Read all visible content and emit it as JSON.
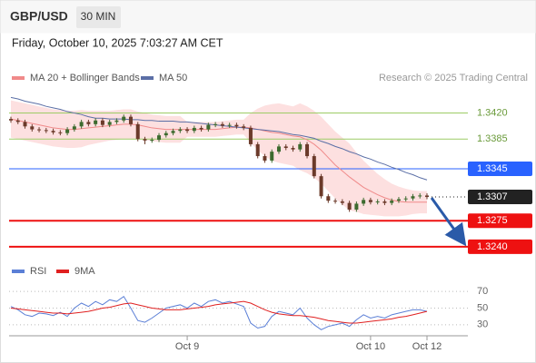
{
  "header": {
    "symbol": "GBP/USD",
    "interval": "30 MIN",
    "timestamp": "Friday, October 10, 2025 7:03:27 AM CET"
  },
  "chart_data": [
    {
      "type": "candlestick",
      "credit": "Research © 2025 Trading Central",
      "up_color": "#3d6b2f",
      "down_color": "#6b3a2a",
      "open": [
        1.3412,
        1.341,
        1.3408,
        1.3402,
        1.3398,
        1.3397,
        1.3396,
        1.3394,
        1.3393,
        1.3398,
        1.3402,
        1.3408,
        1.3405,
        1.341,
        1.3404,
        1.3408,
        1.341,
        1.3415,
        1.3405,
        1.3385,
        1.3383,
        1.3384,
        1.339,
        1.3393,
        1.3396,
        1.3398,
        1.3396,
        1.34,
        1.3398,
        1.3404,
        1.3405,
        1.3403,
        1.3404,
        1.3402,
        1.34,
        1.3378,
        1.3362,
        1.3356,
        1.3368,
        1.3375,
        1.3373,
        1.3371,
        1.3378,
        1.3362,
        1.3335,
        1.3308,
        1.3302,
        1.3301,
        1.3299,
        1.329,
        1.3298,
        1.3303,
        1.33,
        1.3301,
        1.3299,
        1.3302,
        1.3304,
        1.3305,
        1.3308,
        1.3309
      ],
      "high": [
        1.3415,
        1.3413,
        1.3411,
        1.3405,
        1.3401,
        1.34,
        1.3399,
        1.3397,
        1.3401,
        1.3405,
        1.3411,
        1.3411,
        1.3413,
        1.3413,
        1.3411,
        1.3413,
        1.3418,
        1.3418,
        1.3408,
        1.3388,
        1.3387,
        1.3393,
        1.3396,
        1.3399,
        1.3401,
        1.3401,
        1.3403,
        1.3403,
        1.3407,
        1.3408,
        1.3408,
        1.3407,
        1.3407,
        1.3405,
        1.3403,
        1.3381,
        1.3365,
        1.3371,
        1.3378,
        1.3378,
        1.3376,
        1.3381,
        1.3381,
        1.3365,
        1.3338,
        1.3311,
        1.3305,
        1.3304,
        1.3302,
        1.3301,
        1.3306,
        1.3306,
        1.3304,
        1.3304,
        1.3305,
        1.3307,
        1.3308,
        1.3311,
        1.3312,
        1.3312
      ],
      "low": [
        1.3407,
        1.3405,
        1.3399,
        1.3395,
        1.3394,
        1.3393,
        1.3391,
        1.339,
        1.339,
        1.3395,
        1.3399,
        1.3402,
        1.3402,
        1.3401,
        1.3401,
        1.3405,
        1.3407,
        1.3402,
        1.3382,
        1.3378,
        1.338,
        1.3381,
        1.3387,
        1.339,
        1.3393,
        1.3393,
        1.3393,
        1.3395,
        1.3395,
        1.3401,
        1.34,
        1.34,
        1.3399,
        1.3397,
        1.3375,
        1.3359,
        1.3353,
        1.3353,
        1.3365,
        1.337,
        1.3368,
        1.3368,
        1.3359,
        1.3332,
        1.3305,
        1.3299,
        1.3298,
        1.3296,
        1.3287,
        1.3287,
        1.3295,
        1.3297,
        1.3297,
        1.3296,
        1.3296,
        1.3299,
        1.3301,
        1.3302,
        1.3305,
        1.3304
      ],
      "close": [
        1.341,
        1.3408,
        1.3402,
        1.3398,
        1.3397,
        1.3396,
        1.3394,
        1.3393,
        1.3398,
        1.3402,
        1.3408,
        1.3405,
        1.341,
        1.3404,
        1.3408,
        1.341,
        1.3415,
        1.3405,
        1.3385,
        1.3383,
        1.3384,
        1.339,
        1.3393,
        1.3396,
        1.3398,
        1.3396,
        1.34,
        1.3398,
        1.3404,
        1.3405,
        1.3403,
        1.3404,
        1.3402,
        1.34,
        1.3378,
        1.3362,
        1.3356,
        1.3368,
        1.3375,
        1.3373,
        1.3371,
        1.3378,
        1.3362,
        1.3335,
        1.3308,
        1.3302,
        1.3301,
        1.3299,
        1.329,
        1.3298,
        1.3303,
        1.33,
        1.3301,
        1.3299,
        1.3302,
        1.3304,
        1.3305,
        1.3308,
        1.3309,
        1.3307
      ],
      "series": [
        {
          "name": "MA 20 + Bollinger Bands",
          "color": "#f08a8a",
          "band_color": "#fde0e0",
          "values": [
            1.3412,
            1.341,
            1.3408,
            1.3406,
            1.3404,
            1.3402,
            1.34,
            1.3399,
            1.3398,
            1.3398,
            1.3399,
            1.34,
            1.3401,
            1.3402,
            1.3403,
            1.3404,
            1.3405,
            1.3405,
            1.3404,
            1.3402,
            1.34,
            1.3399,
            1.3398,
            1.3398,
            1.3398,
            1.3398,
            1.3398,
            1.3398,
            1.3398,
            1.3398,
            1.3399,
            1.34,
            1.3401,
            1.3401,
            1.34,
            1.3398,
            1.3396,
            1.3394,
            1.3393,
            1.3391,
            1.3389,
            1.3388,
            1.3384,
            1.3378,
            1.337,
            1.336,
            1.335,
            1.3342,
            1.3334,
            1.3327,
            1.332,
            1.3315,
            1.331,
            1.3306,
            1.3303,
            1.3301,
            1.33,
            1.33,
            1.33,
            1.33
          ],
          "upper": [
            1.3437,
            1.3435,
            1.3433,
            1.3431,
            1.3429,
            1.3427,
            1.3425,
            1.3424,
            1.3423,
            1.3423,
            1.3424,
            1.3423,
            1.3423,
            1.3423,
            1.3423,
            1.3424,
            1.3425,
            1.3425,
            1.3422,
            1.342,
            1.3418,
            1.3417,
            1.3416,
            1.3416,
            1.3416,
            1.3408,
            1.3408,
            1.3408,
            1.3408,
            1.3408,
            1.3409,
            1.341,
            1.3411,
            1.3411,
            1.342,
            1.3426,
            1.343,
            1.3432,
            1.3433,
            1.3431,
            1.3429,
            1.3433,
            1.3429,
            1.3423,
            1.3415,
            1.3405,
            1.3395,
            1.3387,
            1.3379,
            1.3367,
            1.3356,
            1.3347,
            1.3338,
            1.3331,
            1.3325,
            1.3321,
            1.3318,
            1.3316,
            1.3315,
            1.3315
          ],
          "lower": [
            1.3387,
            1.3385,
            1.3383,
            1.3381,
            1.3379,
            1.3377,
            1.3375,
            1.3374,
            1.3373,
            1.3373,
            1.3374,
            1.3377,
            1.3379,
            1.3381,
            1.3383,
            1.3384,
            1.3385,
            1.3385,
            1.3386,
            1.3384,
            1.3382,
            1.3381,
            1.338,
            1.338,
            1.338,
            1.3388,
            1.3388,
            1.3388,
            1.3388,
            1.3388,
            1.3389,
            1.339,
            1.3391,
            1.3391,
            1.338,
            1.337,
            1.3362,
            1.3356,
            1.3353,
            1.3351,
            1.3349,
            1.3343,
            1.3339,
            1.3333,
            1.3325,
            1.3315,
            1.3305,
            1.3297,
            1.3289,
            1.3287,
            1.3284,
            1.3283,
            1.3282,
            1.3281,
            1.3281,
            1.3281,
            1.3282,
            1.3284,
            1.3285,
            1.3285
          ]
        },
        {
          "name": "MA 50",
          "color": "#5b6fa6",
          "values": [
            1.3441,
            1.3439,
            1.3436,
            1.3434,
            1.3432,
            1.3429,
            1.3427,
            1.3425,
            1.3422,
            1.342,
            1.3418,
            1.3415,
            1.3413,
            1.3413,
            1.3412,
            1.3412,
            1.3412,
            1.3411,
            1.3411,
            1.341,
            1.341,
            1.3409,
            1.3409,
            1.3409,
            1.3408,
            1.3408,
            1.3407,
            1.3406,
            1.3405,
            1.3404,
            1.3403,
            1.3402,
            1.3401,
            1.34,
            1.3399,
            1.3398,
            1.3397,
            1.3396,
            1.3395,
            1.3393,
            1.3391,
            1.339,
            1.3388,
            1.3386,
            1.3382,
            1.3379,
            1.3375,
            1.3372,
            1.3368,
            1.3365,
            1.3361,
            1.3358,
            1.3354,
            1.3351,
            1.3347,
            1.3344,
            1.334,
            1.3337,
            1.3333,
            1.333
          ]
        }
      ],
      "levels": [
        {
          "value": 1.342,
          "label": "1.3420",
          "color": "#9ccc65",
          "boxed": false,
          "line": "solid",
          "width": 1
        },
        {
          "value": 1.3385,
          "label": "1.3385",
          "color": "#9ccc65",
          "boxed": false,
          "line": "solid",
          "width": 1
        },
        {
          "value": 1.3345,
          "label": "1.3345",
          "color": "#2962ff",
          "boxed": true,
          "line": "solid",
          "width": 1
        },
        {
          "value": 1.3307,
          "label": "1.3307",
          "color": "#222222",
          "boxed": true,
          "line": "dotted",
          "width": 1
        },
        {
          "value": 1.3275,
          "label": "1.3275",
          "color": "#ee1111",
          "boxed": true,
          "line": "solid",
          "width": 2
        },
        {
          "value": 1.324,
          "label": "1.3240",
          "color": "#ee1111",
          "boxed": true,
          "line": "solid",
          "width": 2
        }
      ],
      "ylim": [
        1.3224,
        1.345
      ]
    },
    {
      "type": "line",
      "categories": [
        null,
        null,
        null,
        null,
        null,
        null,
        null,
        null,
        null,
        null,
        null,
        null,
        null,
        null,
        null,
        null,
        null,
        null,
        null,
        null,
        null,
        null,
        null,
        null,
        null,
        "Oct 9",
        null,
        null,
        null,
        null,
        null,
        null,
        null,
        null,
        null,
        null,
        null,
        null,
        null,
        null,
        null,
        null,
        null,
        null,
        null,
        null,
        null,
        null,
        null,
        null,
        null,
        "Oct 10",
        null,
        null,
        null,
        null,
        null,
        null,
        null,
        "Oct 12"
      ],
      "series": [
        {
          "name": "RSI",
          "color": "#5b7fd6",
          "values": [
            52,
            48,
            42,
            40,
            44,
            43,
            41,
            45,
            40,
            50,
            56,
            52,
            58,
            54,
            60,
            58,
            64,
            50,
            35,
            33,
            38,
            44,
            50,
            52,
            54,
            50,
            56,
            52,
            58,
            60,
            56,
            58,
            55,
            52,
            32,
            26,
            28,
            40,
            46,
            44,
            42,
            50,
            38,
            30,
            24,
            28,
            30,
            32,
            28,
            36,
            42,
            38,
            40,
            38,
            42,
            44,
            46,
            48,
            48,
            46
          ]
        },
        {
          "name": "9MA",
          "color": "#e02020",
          "values": [
            50,
            49,
            48,
            47,
            46,
            45,
            44,
            44,
            43,
            44,
            45,
            46,
            48,
            50,
            51,
            53,
            55,
            56,
            54,
            52,
            50,
            49,
            48,
            48,
            48,
            49,
            50,
            51,
            52,
            54,
            55,
            56,
            57,
            58,
            56,
            52,
            48,
            45,
            43,
            42,
            41,
            41,
            40,
            39,
            37,
            35,
            34,
            33,
            32,
            32,
            33,
            34,
            35,
            36,
            37,
            39,
            40,
            42,
            44,
            46
          ]
        }
      ],
      "ylim": [
        20,
        80
      ],
      "yticks": [
        30,
        50,
        70
      ],
      "grid": true
    }
  ]
}
